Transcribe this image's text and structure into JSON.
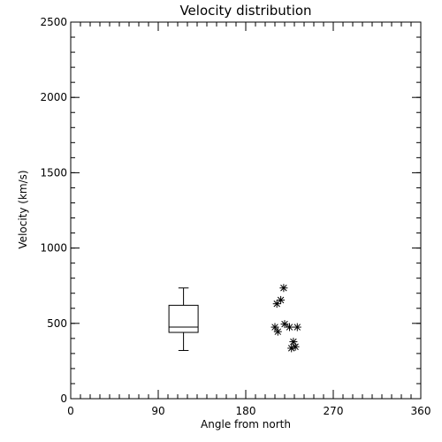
{
  "chart_data": {
    "type": "scatter",
    "title": "Velocity distribution",
    "xlabel": "Angle from north",
    "ylabel": "Velocity (km/s)",
    "xlim": [
      0,
      360
    ],
    "ylim": [
      0,
      2500
    ],
    "xticks": [
      0,
      90,
      180,
      270,
      360
    ],
    "yticks": [
      0,
      500,
      1000,
      1500,
      2000,
      2500
    ],
    "x_minor_step": 10,
    "y_minor_step": 100,
    "grid": false,
    "box": {
      "x": 116,
      "half_width": 15,
      "whisker_low": 320,
      "q1": 440,
      "median": 475,
      "q3": 620,
      "whisker_high": 735
    },
    "points": [
      {
        "x": 210,
        "y": 475
      },
      {
        "x": 213,
        "y": 445
      },
      {
        "x": 212,
        "y": 630
      },
      {
        "x": 216,
        "y": 655
      },
      {
        "x": 219,
        "y": 735
      },
      {
        "x": 220,
        "y": 495
      },
      {
        "x": 225,
        "y": 475
      },
      {
        "x": 229,
        "y": 378
      },
      {
        "x": 227,
        "y": 335
      },
      {
        "x": 231,
        "y": 345
      },
      {
        "x": 233,
        "y": 475
      }
    ],
    "marker": "asterisk"
  }
}
